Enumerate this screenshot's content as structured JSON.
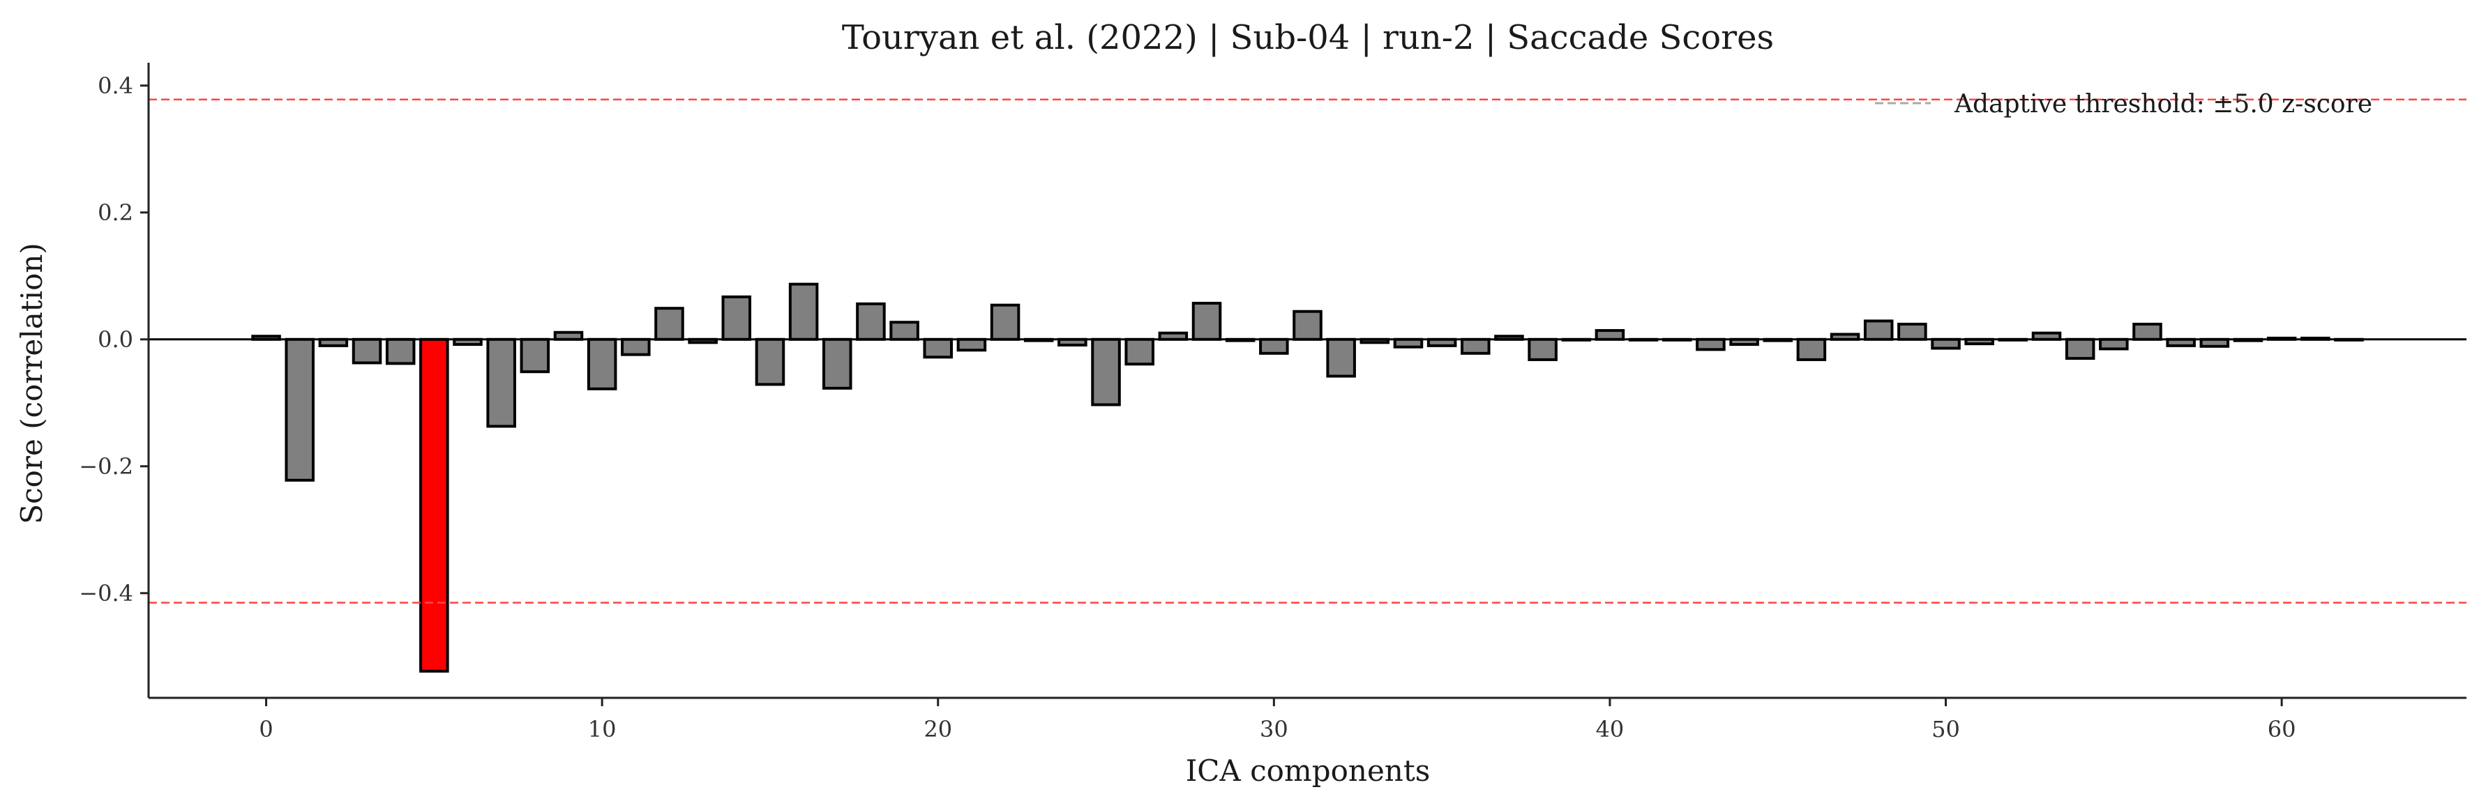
{
  "chart_data": {
    "type": "bar",
    "title": "Touryan et al. (2022) | Sub-04 | run-2 | Saccade Scores",
    "xlabel": "ICA components",
    "ylabel": "Score (correlation)",
    "xlim": [
      -3.5,
      65.5
    ],
    "ylim": [
      -0.565,
      0.425
    ],
    "xticks": [
      0,
      10,
      20,
      30,
      40,
      50,
      60
    ],
    "xtick_labels": [
      "0",
      "10",
      "20",
      "30",
      "40",
      "50",
      "60"
    ],
    "yticks": [
      0.4,
      0.2,
      0.0,
      -0.2,
      -0.4
    ],
    "ytick_labels": [
      "0.4",
      "0.2",
      "0.0",
      "−0.2",
      "−0.4"
    ],
    "grid": false,
    "legend": {
      "position": "top-right",
      "entries": [
        "Adaptive threshold: ±5.0 z-score"
      ]
    },
    "thresholds": [
      0.378,
      -0.415
    ],
    "highlighted_components": [
      5
    ],
    "colors": {
      "bar": "#808080",
      "highlight": "#ff0000",
      "edge": "#000000",
      "threshold": "#ff4444",
      "legend_line": "#aaaaaa",
      "zero_line": "#000000"
    },
    "x": [
      0,
      1,
      2,
      3,
      4,
      5,
      6,
      7,
      8,
      9,
      10,
      11,
      12,
      13,
      14,
      15,
      16,
      17,
      18,
      19,
      20,
      21,
      22,
      23,
      24,
      25,
      26,
      27,
      28,
      29,
      30,
      31,
      32,
      33,
      34,
      35,
      36,
      37,
      38,
      39,
      40,
      41,
      42,
      43,
      44,
      45,
      46,
      47,
      48,
      49,
      50,
      51,
      52,
      53,
      54,
      55,
      56,
      57,
      58,
      59,
      60,
      61,
      62
    ],
    "values": [
      0.005,
      -0.222,
      -0.01,
      -0.037,
      -0.038,
      -0.523,
      -0.008,
      -0.137,
      -0.051,
      0.011,
      -0.078,
      -0.024,
      0.049,
      -0.005,
      0.067,
      -0.071,
      0.087,
      -0.077,
      0.056,
      0.027,
      -0.028,
      -0.017,
      0.054,
      -0.002,
      -0.009,
      -0.103,
      -0.039,
      0.01,
      0.057,
      -0.002,
      -0.022,
      0.044,
      -0.058,
      -0.005,
      -0.012,
      -0.01,
      -0.022,
      0.005,
      -0.032,
      0.0,
      0.014,
      0.0,
      0.0,
      -0.016,
      -0.008,
      -0.002,
      -0.032,
      0.008,
      0.029,
      0.024,
      -0.014,
      -0.007,
      0.0,
      0.01,
      -0.03,
      -0.015,
      0.024,
      -0.01,
      -0.011,
      -0.002,
      0.002,
      0.002,
      -0.001
    ]
  }
}
